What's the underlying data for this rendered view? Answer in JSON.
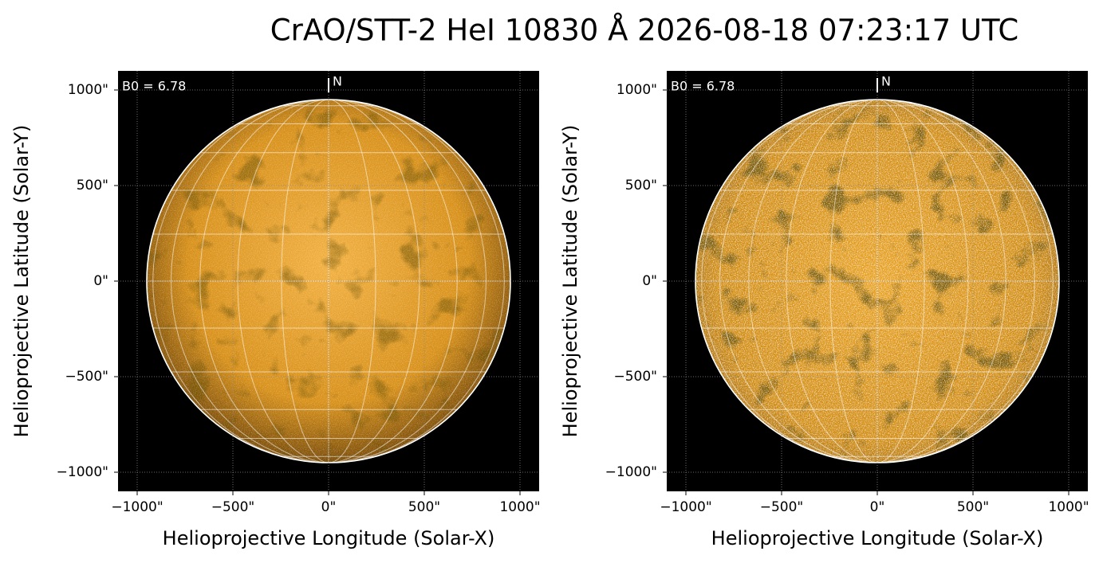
{
  "chart_data": [
    {
      "type": "image",
      "title": "CrAO/STT-2 HeI 10830 Å 2026-08-18 07:23:17 UTC",
      "annotation": "B0 = 6.78",
      "north_label": "N",
      "xlabel": "Helioprojective Longitude (Solar-X)",
      "ylabel": "Helioprojective Latitude (Solar-Y)",
      "xlim": [
        -1100,
        1100
      ],
      "ylim": [
        -1100,
        1100
      ],
      "xticks": [
        {
          "value": -1000,
          "label": "−1000\""
        },
        {
          "value": -500,
          "label": "−500\""
        },
        {
          "value": 0,
          "label": "0\""
        },
        {
          "value": 500,
          "label": "500\""
        },
        {
          "value": 1000,
          "label": "1000\""
        }
      ],
      "yticks": [
        {
          "value": -1000,
          "label": "−1000\""
        },
        {
          "value": -500,
          "label": "−500\""
        },
        {
          "value": 0,
          "label": "0\""
        },
        {
          "value": 500,
          "label": "500\""
        },
        {
          "value": 1000,
          "label": "1000\""
        }
      ],
      "disk_radius": 950,
      "grid": true
    },
    {
      "type": "image",
      "annotation": "B0 = 6.78",
      "north_label": "N",
      "xlabel": "Helioprojective Longitude (Solar-X)",
      "ylabel": "Helioprojective Latitude (Solar-Y)",
      "xlim": [
        -1100,
        1100
      ],
      "ylim": [
        -1100,
        1100
      ],
      "xticks": [
        {
          "value": -1000,
          "label": "−1000\""
        },
        {
          "value": -500,
          "label": "−500\""
        },
        {
          "value": 0,
          "label": "0\""
        },
        {
          "value": 500,
          "label": "500\""
        },
        {
          "value": 1000,
          "label": "1000\""
        }
      ],
      "yticks": [
        {
          "value": -1000,
          "label": "−1000\""
        },
        {
          "value": -500,
          "label": "−500\""
        },
        {
          "value": 0,
          "label": "0\""
        },
        {
          "value": 500,
          "label": "500\""
        },
        {
          "value": 1000,
          "label": "1000\""
        }
      ],
      "disk_radius": 950,
      "grid": true
    }
  ]
}
